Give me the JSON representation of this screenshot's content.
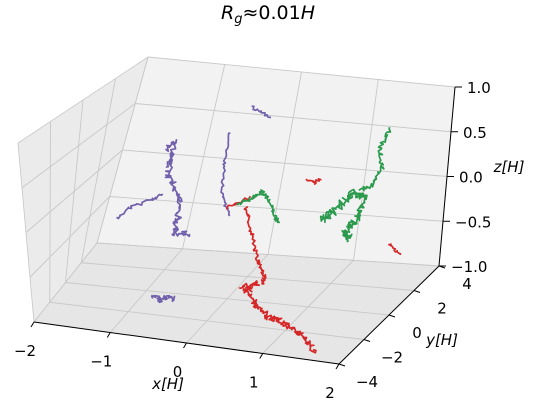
{
  "chart_data": {
    "type": "line3d",
    "title": {
      "symbol": "R",
      "subscript": "g",
      "relation": "≈",
      "value": "0.01",
      "variable": "H"
    },
    "xlabel": "x[H]",
    "ylabel": "y[H]",
    "zlabel": "z[H]",
    "xlim": [
      -2,
      2
    ],
    "ylim": [
      -4,
      4
    ],
    "zlim": [
      -1,
      1
    ],
    "x_ticks": [
      "−2",
      "−1",
      "0",
      "1",
      "2"
    ],
    "y_ticks": [
      "−4",
      "−2",
      "0",
      "2",
      "4"
    ],
    "z_ticks": [
      "−1.0",
      "−0.5",
      "0.0",
      "0.5",
      "1.0"
    ],
    "grid": true,
    "series": [
      {
        "color": "#7160ab",
        "trajectories": 5
      },
      {
        "color": "#d62728",
        "trajectories": 4
      },
      {
        "color": "#2b9a4d",
        "trajectories": 3
      }
    ]
  }
}
